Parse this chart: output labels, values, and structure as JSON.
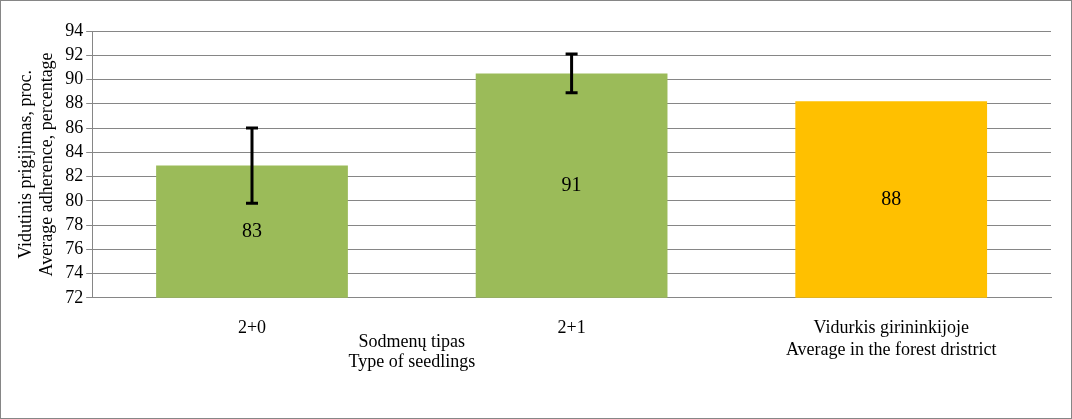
{
  "chart_data": {
    "type": "bar",
    "categories": [
      "2+0",
      "2+1",
      "Vidurkis girininkijoje\nAverage in the forest dristrict"
    ],
    "values": [
      82.9,
      90.5,
      88.2
    ],
    "colors": [
      "#9bbb59",
      "#9bbb59",
      "#ffc000"
    ],
    "errors": [
      [
        79.8,
        86.0
      ],
      [
        88.9,
        92.1
      ],
      null
    ],
    "value_labels": [
      "83",
      "91",
      "88"
    ],
    "xlabel": "Sodmenų tipas\nType of seedlings",
    "ylabel": "Vidutinis prigijimas, proc.\nAverage adherence, percentage",
    "ylim": [
      72,
      94
    ],
    "yticks": [
      72,
      74,
      76,
      78,
      80,
      82,
      84,
      86,
      88,
      90,
      92,
      94
    ],
    "grid": "y",
    "legend": false
  }
}
